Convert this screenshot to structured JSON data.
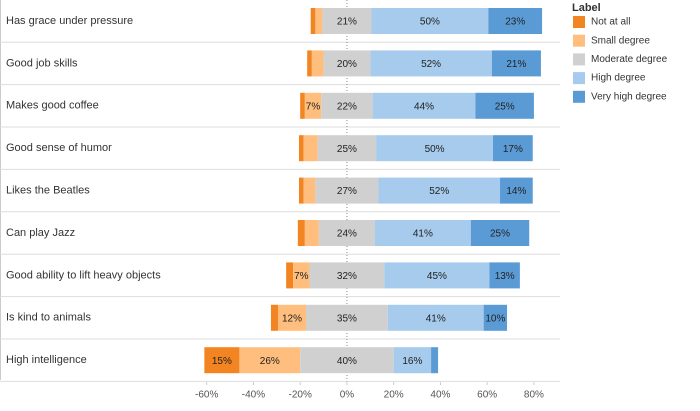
{
  "chart_data": {
    "type": "diverging-bar",
    "legend_title": "Label",
    "legend": "right",
    "grid": false,
    "categories": [
      "Has grace under pressure",
      "Good job skills",
      "Makes good coffee",
      "Good sense of humor",
      "Likes the Beatles",
      "Can play Jazz",
      "Good ability to lift heavy objects",
      "Is kind to animals",
      "High intelligence"
    ],
    "series": [
      {
        "name": "Not at all",
        "color": "#f28522",
        "values": [
          2,
          2,
          2,
          2,
          2,
          3,
          3,
          3,
          15
        ],
        "value_labels": [
          null,
          null,
          null,
          null,
          null,
          null,
          null,
          null,
          "15%"
        ]
      },
      {
        "name": "Small degree",
        "color": "#ffbe7d",
        "values": [
          3,
          5,
          7,
          6,
          5,
          6,
          7,
          12,
          26
        ],
        "value_labels": [
          null,
          null,
          "7%",
          null,
          null,
          null,
          "7%",
          "12%",
          "26%"
        ]
      },
      {
        "name": "Moderate degree",
        "color": "#d0d0d0",
        "values": [
          21,
          20,
          22,
          25,
          27,
          24,
          32,
          35,
          40
        ],
        "value_labels": [
          "21%",
          "20%",
          "22%",
          "25%",
          "27%",
          "24%",
          "32%",
          "35%",
          "40%"
        ]
      },
      {
        "name": "High degree",
        "color": "#a6cbec",
        "values": [
          50,
          52,
          44,
          50,
          52,
          41,
          45,
          41,
          16
        ],
        "value_labels": [
          "50%",
          "52%",
          "44%",
          "50%",
          "52%",
          "41%",
          "45%",
          "41%",
          "16%"
        ]
      },
      {
        "name": "Very high degree",
        "color": "#5b9bd5",
        "values": [
          23,
          21,
          25,
          17,
          14,
          25,
          13,
          10,
          3
        ],
        "value_labels": [
          "23%",
          "21%",
          "25%",
          "17%",
          "14%",
          "25%",
          "13%",
          "10%",
          null
        ]
      }
    ],
    "xlim": [
      -65,
      85
    ],
    "xticks": [
      {
        "value": -60,
        "label": "-60%"
      },
      {
        "value": -40,
        "label": "-40%"
      },
      {
        "value": -20,
        "label": "-20%"
      },
      {
        "value": 0,
        "label": "0%"
      },
      {
        "value": 20,
        "label": "20%"
      },
      {
        "value": 40,
        "label": "40%"
      },
      {
        "value": 60,
        "label": "60%"
      },
      {
        "value": 80,
        "label": "80%"
      }
    ]
  }
}
